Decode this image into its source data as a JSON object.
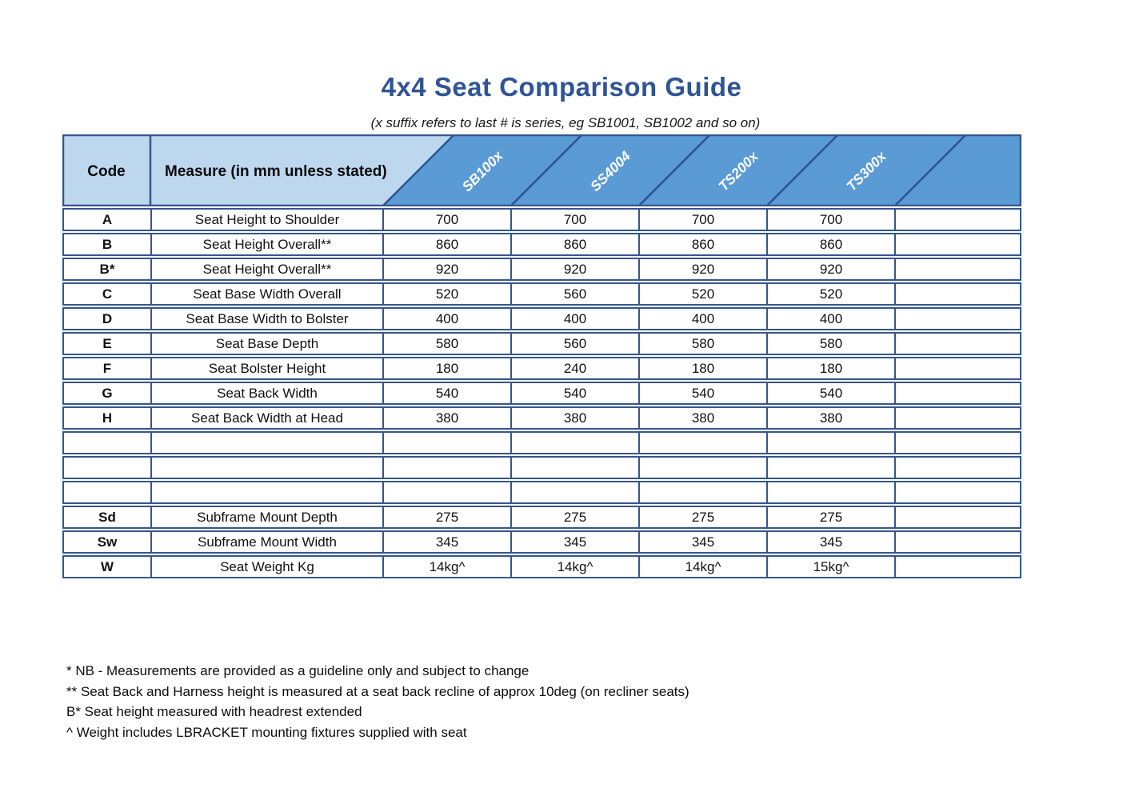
{
  "title": "4x4 Seat Comparison Guide",
  "subtitle": "(x suffix refers to last # is series, eg SB1001, SB1002 and so on)",
  "colors": {
    "accent_band": "#5B9BD5",
    "accent_band_light": "#BDD7EE",
    "grid_line": "#35568F",
    "title_blue": "#2F5496"
  },
  "table": {
    "header": {
      "code": "Code",
      "measure": "Measure (in mm unless stated)",
      "products": [
        "SB100x",
        "SS4004",
        "TS200x",
        "TS300x"
      ]
    },
    "rows": [
      {
        "code": "A",
        "measure": "Seat Height to Shoulder",
        "values": [
          "700",
          "700",
          "700",
          "700",
          ""
        ]
      },
      {
        "code": "B",
        "measure": "Seat Height Overall**",
        "values": [
          "860",
          "860",
          "860",
          "860",
          ""
        ]
      },
      {
        "code": "B*",
        "measure": "Seat Height Overall**",
        "values": [
          "920",
          "920",
          "920",
          "920",
          ""
        ]
      },
      {
        "code": "C",
        "measure": "Seat Base Width Overall",
        "values": [
          "520",
          "560",
          "520",
          "520",
          ""
        ]
      },
      {
        "code": "D",
        "measure": "Seat Base Width to Bolster",
        "values": [
          "400",
          "400",
          "400",
          "400",
          ""
        ]
      },
      {
        "code": "E",
        "measure": "Seat Base Depth",
        "values": [
          "580",
          "560",
          "580",
          "580",
          ""
        ]
      },
      {
        "code": "F",
        "measure": "Seat Bolster Height",
        "values": [
          "180",
          "240",
          "180",
          "180",
          ""
        ]
      },
      {
        "code": "G",
        "measure": "Seat Back Width",
        "values": [
          "540",
          "540",
          "540",
          "540",
          ""
        ]
      },
      {
        "code": "H",
        "measure": "Seat Back Width at Head",
        "values": [
          "380",
          "380",
          "380",
          "380",
          ""
        ]
      },
      {
        "code": "",
        "measure": "",
        "values": [
          "",
          "",
          "",
          "",
          ""
        ]
      },
      {
        "code": "",
        "measure": "",
        "values": [
          "",
          "",
          "",
          "",
          ""
        ]
      },
      {
        "code": "",
        "measure": "",
        "values": [
          "",
          "",
          "",
          "",
          ""
        ]
      },
      {
        "code": "Sd",
        "measure": "Subframe Mount Depth",
        "values": [
          "275",
          "275",
          "275",
          "275",
          ""
        ]
      },
      {
        "code": "Sw",
        "measure": "Subframe Mount Width",
        "values": [
          "345",
          "345",
          "345",
          "345",
          ""
        ]
      },
      {
        "code": "W",
        "measure": "Seat Weight Kg",
        "values": [
          "14kg^",
          "14kg^",
          "14kg^",
          "15kg^",
          ""
        ]
      }
    ]
  },
  "footnotes": [
    "* NB - Measurements are provided as a guideline only and subject to change",
    "** Seat Back and Harness height is measured at a seat back recline of approx 10deg (on recliner seats)",
    "B* Seat height measured with headrest extended",
    "^ Weight includes LBRACKET mounting fixtures supplied with seat"
  ]
}
